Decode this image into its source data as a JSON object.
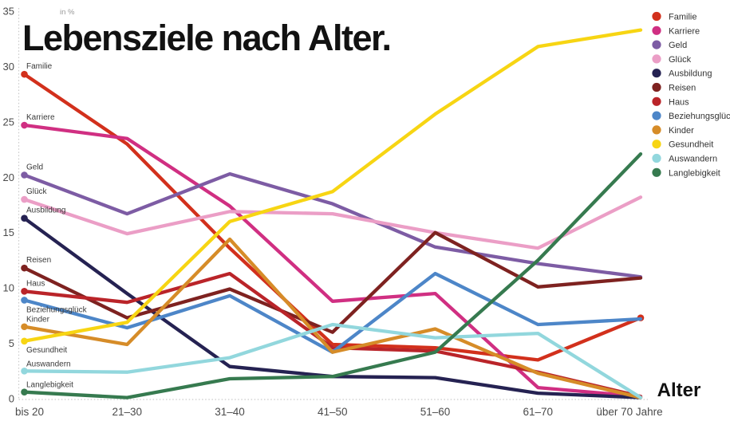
{
  "title": "Lebensziele nach Alter.",
  "y_axis": {
    "unit_label": "in %",
    "ticks": [
      0,
      5,
      10,
      15,
      20,
      25,
      30,
      35
    ]
  },
  "x_axis": {
    "labels": [
      "bis 20",
      "21–30",
      "31–40",
      "41–50",
      "51–60",
      "61–70",
      "über 70 Jahre"
    ],
    "axis_label": "Alter"
  },
  "colors": {
    "axis_text": "#4a4a4a",
    "grid_dotted": "#c9c9c9",
    "series_label_text": "#3a3a3a",
    "legend_text": "#333333",
    "title_text": "#121212",
    "unit_text": "#999999"
  },
  "chart_data": {
    "type": "line",
    "categories": [
      "bis 20",
      "21–30",
      "31–40",
      "41–50",
      "51–60",
      "61–70",
      "über 70 Jahre"
    ],
    "title": "Lebensziele nach Alter.",
    "xlabel": "Alter",
    "ylabel": "in %",
    "ylim": [
      0,
      35
    ],
    "grid": "dotted y-axis line and dotted zero baseline only",
    "legend_position": "top-right",
    "series": [
      {
        "name": "Familie",
        "color": "#d2301c",
        "values": [
          29.3,
          23.0,
          13.6,
          4.9,
          4.6,
          3.5,
          7.3
        ],
        "label_dy": -7,
        "end_dot": true
      },
      {
        "name": "Karriere",
        "color": "#d02f82",
        "values": [
          24.7,
          23.5,
          17.4,
          8.8,
          9.5,
          1.0,
          0.2
        ],
        "label_dy": -7,
        "end_dot": false
      },
      {
        "name": "Geld",
        "color": "#7d5ca4",
        "values": [
          20.2,
          16.7,
          20.3,
          17.6,
          13.7,
          12.2,
          11.0
        ],
        "label_dy": -7,
        "end_dot": false
      },
      {
        "name": "Glück",
        "color": "#eb9ec6",
        "values": [
          18.0,
          14.9,
          16.9,
          16.7,
          15.0,
          13.6,
          18.2
        ],
        "label_dy": -7,
        "end_dot": false
      },
      {
        "name": "Ausbildung",
        "color": "#252252",
        "values": [
          16.3,
          9.5,
          2.9,
          2.0,
          1.9,
          0.5,
          0.1
        ],
        "label_dy": -7,
        "end_dot": false
      },
      {
        "name": "Reisen",
        "color": "#7e2220",
        "values": [
          11.8,
          7.3,
          9.9,
          6.0,
          15.0,
          10.1,
          10.9
        ],
        "label_dy": -7,
        "end_dot": false
      },
      {
        "name": "Haus",
        "color": "#ba2429",
        "values": [
          9.7,
          8.7,
          11.3,
          4.6,
          4.3,
          2.4,
          0.2
        ],
        "label_dy": -7,
        "end_dot": false
      },
      {
        "name": "Beziehungsglück",
        "color": "#4d86c8",
        "values": [
          8.9,
          6.4,
          9.3,
          4.2,
          11.3,
          6.7,
          7.2
        ],
        "label_dy": 15,
        "end_dot": false
      },
      {
        "name": "Kinder",
        "color": "#d68c28",
        "values": [
          6.5,
          4.9,
          14.4,
          4.2,
          6.3,
          2.3,
          0.1
        ],
        "label_dy": -6,
        "end_dot": false
      },
      {
        "name": "Gesundheit",
        "color": "#f7d513",
        "values": [
          5.2,
          6.9,
          16.0,
          18.7,
          25.7,
          31.8,
          33.3
        ],
        "label_dy": 14,
        "end_dot": false
      },
      {
        "name": "Auswandern",
        "color": "#92d7dd",
        "values": [
          2.5,
          2.4,
          3.7,
          6.7,
          5.5,
          5.9,
          0.1
        ],
        "label_dy": -6,
        "end_dot": false
      },
      {
        "name": "Langlebigkeit",
        "color": "#367a4f",
        "values": [
          0.6,
          0.1,
          1.8,
          2.0,
          4.2,
          12.5,
          22.1
        ],
        "label_dy": -6,
        "end_dot": false
      }
    ]
  }
}
